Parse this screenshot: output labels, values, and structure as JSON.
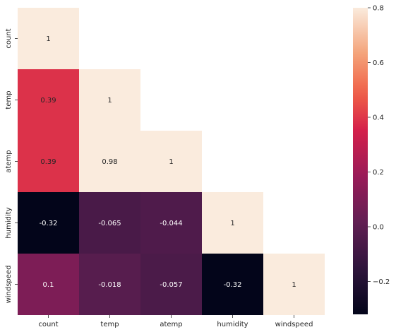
{
  "chart_data": {
    "type": "heatmap",
    "title": "",
    "mask": "upper-triangle",
    "x_labels": [
      "count",
      "temp",
      "atemp",
      "humidity",
      "windspeed"
    ],
    "y_labels": [
      "count",
      "temp",
      "atemp",
      "humidity",
      "windspeed"
    ],
    "matrix": [
      [
        1,
        null,
        null,
        null,
        null
      ],
      [
        0.39,
        1,
        null,
        null,
        null
      ],
      [
        0.39,
        0.98,
        1,
        null,
        null
      ],
      [
        -0.32,
        -0.065,
        -0.044,
        1,
        null
      ],
      [
        0.1,
        -0.018,
        -0.057,
        -0.32,
        1
      ]
    ],
    "cell_labels": [
      [
        "1",
        null,
        null,
        null,
        null
      ],
      [
        "0.39",
        "1",
        null,
        null,
        null
      ],
      [
        "0.39",
        "0.98",
        "1",
        null,
        null
      ],
      [
        "-0.32",
        "-0.065",
        "-0.044",
        "1",
        null
      ],
      [
        "0.1",
        "-0.018",
        "-0.057",
        "-0.32",
        "1"
      ]
    ],
    "colorbar": {
      "vmin": -0.32,
      "vmax": 0.8,
      "ticks": [
        -0.2,
        0.0,
        0.2,
        0.4,
        0.6,
        0.8
      ],
      "tick_labels": [
        "−0.2",
        "0.0",
        "0.2",
        "0.4",
        "0.6",
        "0.8"
      ],
      "colormap": "rocket"
    }
  }
}
